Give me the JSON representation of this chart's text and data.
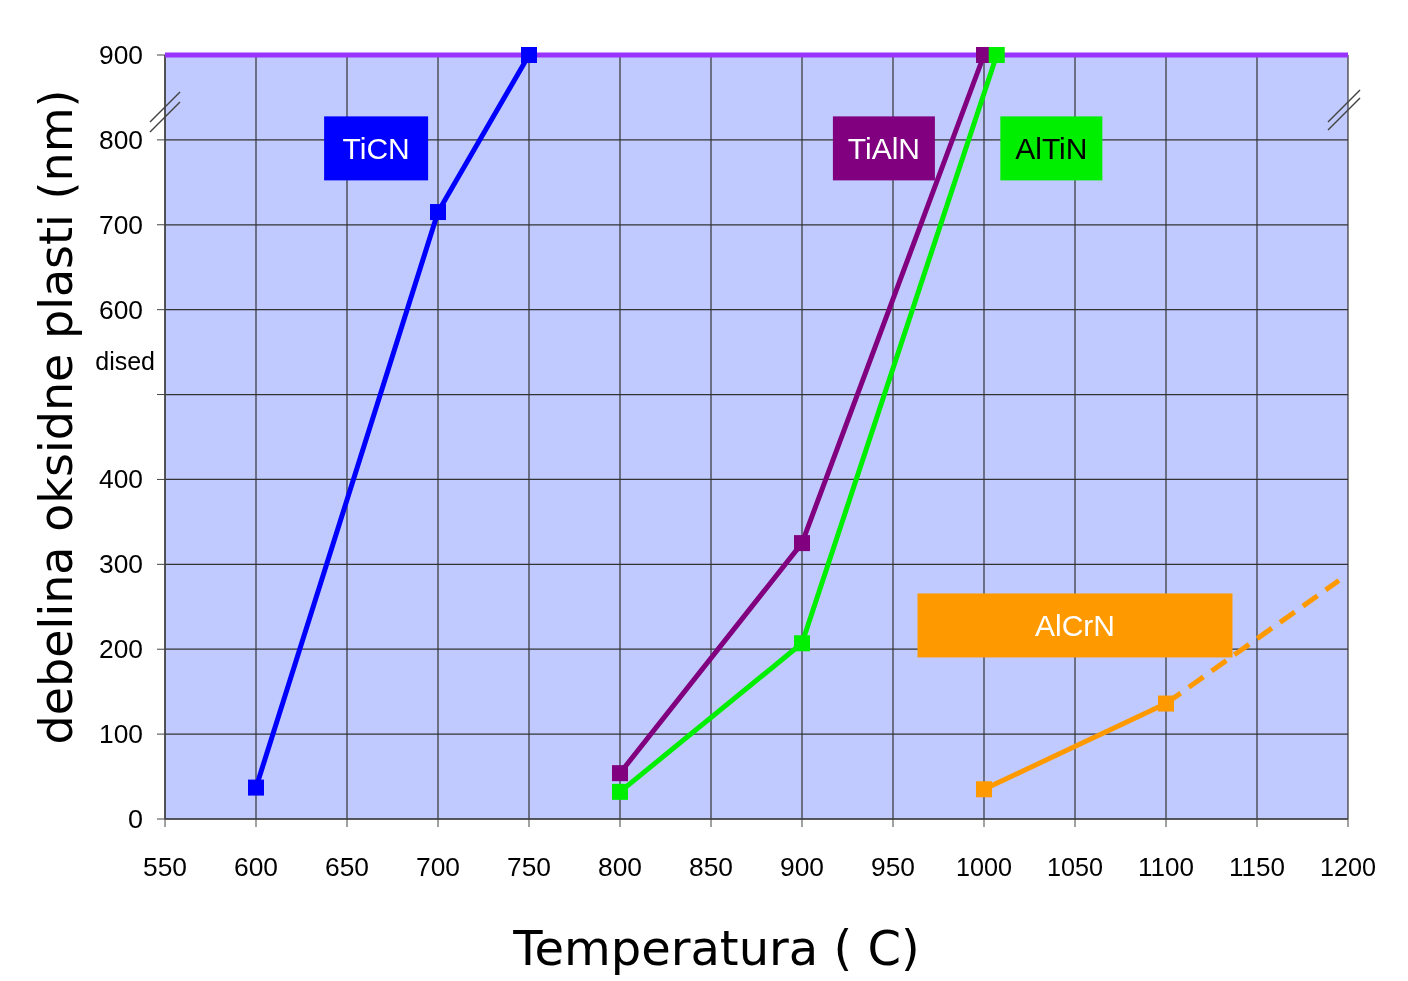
{
  "chart_data": {
    "type": "line",
    "xlabel": "Temperatura ( C)",
    "ylabel": "debelina oksidne plasti (nm)",
    "xlim": [
      550,
      1200
    ],
    "xticks": [
      550,
      600,
      650,
      700,
      750,
      800,
      850,
      900,
      950,
      1000,
      1050,
      1100,
      1150,
      1200
    ],
    "ylim": [
      0,
      900
    ],
    "yticks": [
      0,
      100,
      200,
      300,
      400,
      {
        "value": 500,
        "label": null
      },
      600,
      700,
      800,
      900
    ],
    "grid": true,
    "marker": "square",
    "line_style": "solid",
    "ref_lines": [
      {
        "axis": "y",
        "value": 900,
        "color": "#9933ff"
      }
    ],
    "annotations": [
      "dised"
    ],
    "series": [
      {
        "name": "TiCN",
        "color": "#0000ff",
        "x": [
          600,
          700,
          750
        ],
        "values": [
          37,
          715,
          900
        ]
      },
      {
        "name": "TiAlN",
        "color": "#800080",
        "x": [
          800,
          900,
          1000
        ],
        "values": [
          54,
          325,
          900
        ]
      },
      {
        "name": "AlTiN",
        "color": "#00ee00",
        "x": [
          800,
          900,
          1007
        ],
        "values": [
          32,
          207,
          900
        ]
      },
      {
        "name": "AlCrN",
        "color": "#ff9900",
        "x": [
          1000,
          1100
        ],
        "values": [
          35,
          136
        ]
      },
      {
        "color": "#ff9900",
        "x": [
          1100,
          1195
        ],
        "values": [
          136,
          281
        ],
        "marker": "none",
        "line_style": "dashed"
      }
    ]
  }
}
